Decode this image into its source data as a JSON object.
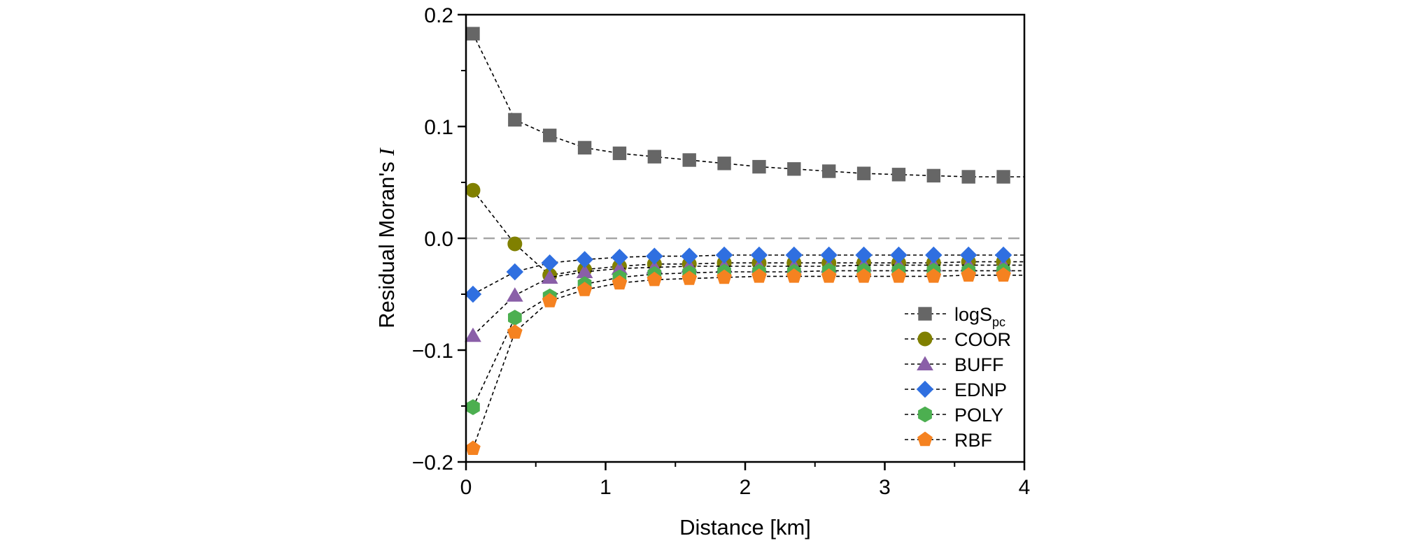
{
  "chart_data": {
    "type": "line",
    "xlabel": "Distance [km]",
    "ylabel": "Residual Moran's ",
    "ylabel_italic": "I",
    "xlim": [
      0,
      4
    ],
    "ylim": [
      -0.2,
      0.2
    ],
    "x_ticks": [
      0,
      1,
      2,
      3,
      4
    ],
    "x_tick_labels": [
      "0",
      "1",
      "2",
      "3",
      "4"
    ],
    "y_ticks": [
      -0.2,
      -0.1,
      0.0,
      0.1,
      0.2
    ],
    "y_tick_labels": [
      "−0.2",
      "−0.1",
      "0.0",
      "0.1",
      "0.2"
    ],
    "reference_line": {
      "y": 0.0,
      "style": "dashed",
      "color": "#a6a6a6"
    },
    "grid": false,
    "legend_position": "bottom-right",
    "x": [
      0.05,
      0.35,
      0.6,
      0.85,
      1.1,
      1.35,
      1.6,
      1.85,
      2.1,
      2.35,
      2.6,
      2.85,
      3.1,
      3.35,
      3.6,
      3.85
    ],
    "series": [
      {
        "name": "logS",
        "name_sub": "pc",
        "marker": "square",
        "color": "#666666",
        "line_extends_to": 4,
        "line_end_value": 0.055,
        "values": [
          0.183,
          0.106,
          0.092,
          0.081,
          0.076,
          0.073,
          0.07,
          0.067,
          0.064,
          0.062,
          0.06,
          0.058,
          0.057,
          0.056,
          0.055,
          0.055
        ]
      },
      {
        "name": "COOR",
        "marker": "circle",
        "color": "#808000",
        "line_extends_to": 4,
        "line_end_value": -0.021,
        "values": [
          0.043,
          -0.005,
          -0.033,
          -0.028,
          -0.025,
          -0.023,
          -0.023,
          -0.022,
          -0.022,
          -0.022,
          -0.022,
          -0.022,
          -0.022,
          -0.022,
          -0.021,
          -0.021
        ]
      },
      {
        "name": "BUFF",
        "marker": "triangle",
        "color": "#8a5fa8",
        "line_extends_to": 4,
        "line_end_value": -0.024,
        "values": [
          -0.087,
          -0.051,
          -0.035,
          -0.03,
          -0.027,
          -0.026,
          -0.025,
          -0.025,
          -0.025,
          -0.025,
          -0.025,
          -0.024,
          -0.024,
          -0.024,
          -0.024,
          -0.024
        ]
      },
      {
        "name": "EDNP",
        "marker": "diamond",
        "color": "#2f6fe0",
        "line_extends_to": 4,
        "line_end_value": -0.015,
        "values": [
          -0.05,
          -0.03,
          -0.022,
          -0.019,
          -0.017,
          -0.016,
          -0.016,
          -0.015,
          -0.015,
          -0.015,
          -0.015,
          -0.015,
          -0.015,
          -0.015,
          -0.015,
          -0.015
        ]
      },
      {
        "name": "POLY",
        "marker": "hexagon",
        "color": "#4caf50",
        "line_extends_to": 4,
        "line_end_value": -0.029,
        "values": [
          -0.151,
          -0.071,
          -0.052,
          -0.041,
          -0.035,
          -0.032,
          -0.031,
          -0.03,
          -0.03,
          -0.03,
          -0.029,
          -0.029,
          -0.029,
          -0.029,
          -0.029,
          -0.029
        ]
      },
      {
        "name": "RBF",
        "marker": "pentagon",
        "color": "#f58220",
        "line_extends_to": 4,
        "line_end_value": -0.033,
        "values": [
          -0.188,
          -0.084,
          -0.056,
          -0.046,
          -0.04,
          -0.037,
          -0.036,
          -0.035,
          -0.034,
          -0.034,
          -0.034,
          -0.034,
          -0.034,
          -0.034,
          -0.033,
          -0.033
        ]
      }
    ]
  }
}
